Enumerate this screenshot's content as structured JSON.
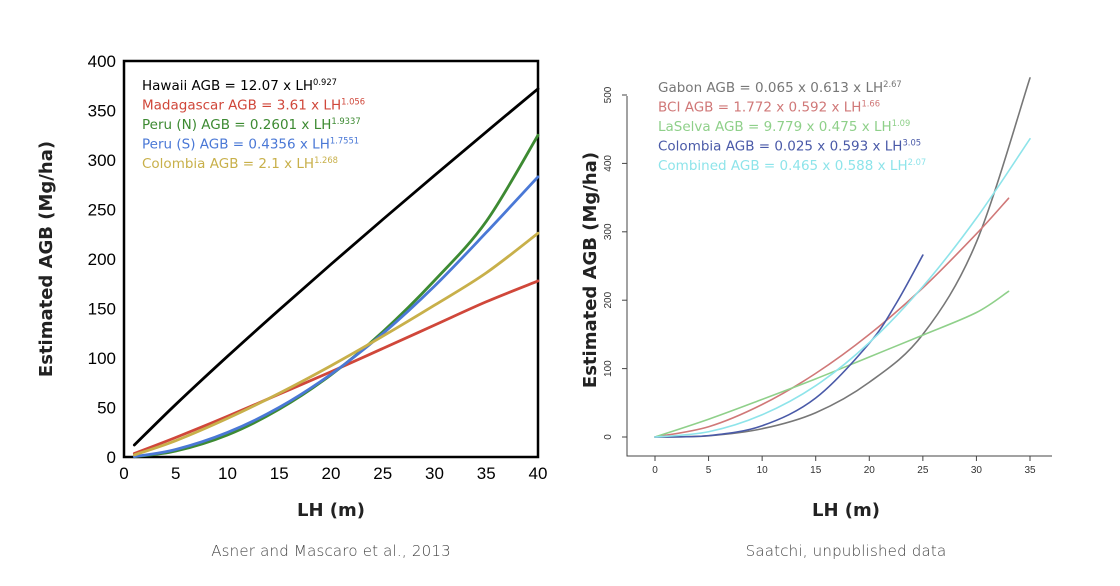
{
  "chart_data": [
    {
      "type": "line",
      "ylabel": "Estimated AGB (Mg/ha)",
      "xlabel": "LH (m)",
      "xlim": [
        0,
        40
      ],
      "ylim": [
        0,
        400
      ],
      "xticks": [
        0,
        5,
        10,
        15,
        20,
        25,
        30,
        35,
        40
      ],
      "yticks": [
        0,
        50,
        100,
        150,
        200,
        250,
        300,
        350,
        400
      ],
      "grid": false,
      "legend_position": "top-left",
      "caption": "Asner and Mascaro et al., 2013",
      "series": [
        {
          "name": "Hawaii",
          "color": "#000000",
          "eq_prefix": "Hawaii AGB = 12.07 x LH",
          "eq_exp": "0.927",
          "x": [
            1,
            5,
            10,
            15,
            20,
            25,
            30,
            35,
            40
          ],
          "y": [
            12.1,
            53.1,
            101.7,
            148.7,
            194.7,
            239.9,
            284.4,
            328.4,
            371.9
          ]
        },
        {
          "name": "Madagascar",
          "color": "#d0473a",
          "eq_prefix": "Madagascar AGB = 3.61 x LH",
          "eq_exp": "1.056",
          "x": [
            1,
            5,
            10,
            15,
            20,
            25,
            30,
            35,
            40
          ],
          "y": [
            3.6,
            19.7,
            41.1,
            63.5,
            86.1,
            109.6,
            133.2,
            156.8,
            177.8
          ]
        },
        {
          "name": "Peru (N)",
          "color": "#3d8a32",
          "eq_prefix": "Peru (N) AGB = 0.2601 x LH",
          "eq_exp": "1.9337",
          "x": [
            1,
            5,
            10,
            15,
            20,
            25,
            30,
            35,
            40
          ],
          "y": [
            0.3,
            6.0,
            22.3,
            48.3,
            83.0,
            126.5,
            178.3,
            238.0,
            325.0
          ]
        },
        {
          "name": "Peru (S)",
          "color": "#4a78d6",
          "eq_prefix": "Peru (S) AGB = 0.4356 x LH",
          "eq_exp": "1.7551",
          "x": [
            1,
            5,
            10,
            15,
            20,
            25,
            30,
            35,
            40
          ],
          "y": [
            0.4,
            7.6,
            24.8,
            50.1,
            83.6,
            124.6,
            172.6,
            226.8,
            283.0
          ]
        },
        {
          "name": "Colombia",
          "color": "#c8b04a",
          "eq_prefix": "Colombia AGB = 2.1 x LH",
          "eq_exp": "1.268",
          "x": [
            1,
            5,
            10,
            15,
            20,
            25,
            30,
            35,
            40
          ],
          "y": [
            2.1,
            16.5,
            39.0,
            64.4,
            92.2,
            122.0,
            153.3,
            186.0,
            226.0
          ]
        }
      ]
    },
    {
      "type": "line",
      "ylabel": "Estimated AGB (Mg/ha)",
      "xlabel": "LH (m)",
      "xlim": [
        0,
        35
      ],
      "ylim": [
        0,
        500
      ],
      "xticks": [
        0,
        5,
        10,
        15,
        20,
        25,
        30,
        35
      ],
      "yticks": [
        0,
        100,
        200,
        300,
        400,
        500
      ],
      "grid": false,
      "legend_position": "top-left",
      "caption": "Saatchi, unpublished data",
      "series": [
        {
          "name": "Gabon",
          "color": "#777777",
          "eq_prefix": "Gabon AGB = 0.065 x 0.613 x LH",
          "eq_exp": "2.67",
          "x": [
            0,
            5,
            10,
            15,
            20,
            25,
            30,
            35
          ],
          "y": [
            0,
            1.8,
            12.1,
            35.5,
            80.0,
            150.0,
            285.0,
            525.0
          ]
        },
        {
          "name": "BCI",
          "color": "#d07878",
          "eq_prefix": "BCI AGB = 1.772 x 0.592 x LH",
          "eq_exp": "1.66",
          "x": [
            0,
            5,
            10,
            15,
            20,
            25,
            30,
            33
          ],
          "y": [
            0,
            15.0,
            47.5,
            93.0,
            150.0,
            218.0,
            297.0,
            349.0
          ]
        },
        {
          "name": "LaSelva",
          "color": "#8fd08a",
          "eq_prefix": "LaSelva AGB = 9.779 x 0.475 x LH",
          "eq_exp": "1.09",
          "x": [
            0,
            5,
            10,
            15,
            20,
            25,
            30,
            33
          ],
          "y": [
            0,
            26.0,
            55.0,
            85.0,
            117.0,
            149.0,
            182.0,
            213.0
          ]
        },
        {
          "name": "Colombia",
          "color": "#4a5aa8",
          "eq_prefix": "Colombia AGB = 0.025 x 0.593 x LH",
          "eq_exp": "3.05",
          "x": [
            0,
            5,
            10,
            15,
            20,
            22.5,
            25
          ],
          "y": [
            0,
            2.0,
            16.5,
            57.0,
            137.0,
            195.0,
            266.0
          ]
        },
        {
          "name": "Combined",
          "color": "#8ee4ea",
          "eq_prefix": "Combined AGB = 0.465 x 0.588 x LH",
          "eq_exp": "2.07",
          "x": [
            0,
            5,
            10,
            15,
            20,
            25,
            30,
            35
          ],
          "y": [
            0,
            7.7,
            32.5,
            75.0,
            138.0,
            220.0,
            320.0,
            436.0
          ]
        }
      ]
    }
  ]
}
